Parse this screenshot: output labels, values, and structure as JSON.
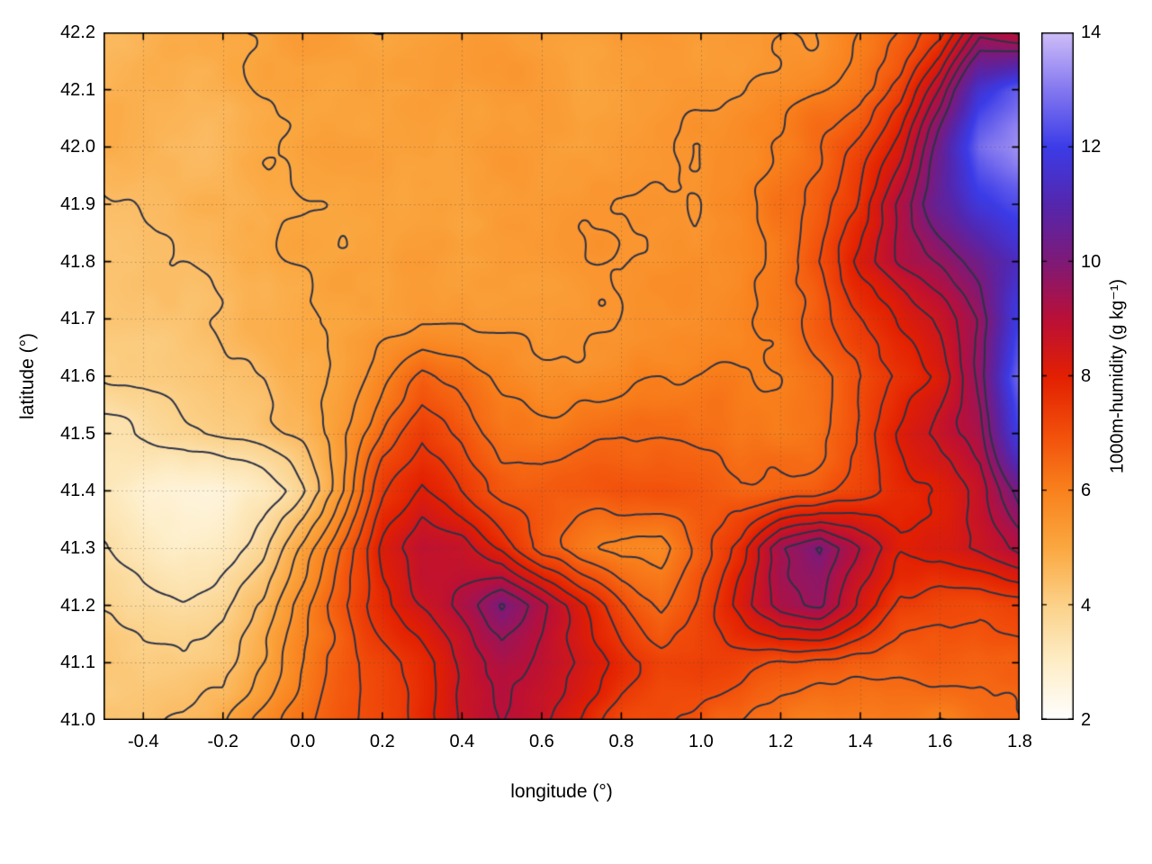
{
  "chart_data": {
    "type": "heatmap",
    "title": "",
    "xlabel": "longitude (°)",
    "ylabel": "latitude (°)",
    "x_range": [
      -0.5,
      1.8
    ],
    "y_range": [
      41.0,
      42.2
    ],
    "x_tick_values": [
      -0.4,
      -0.2,
      0.0,
      0.2,
      0.4,
      0.6,
      0.8,
      1.0,
      1.2,
      1.4,
      1.6,
      1.8
    ],
    "x_tick_labels": [
      "-0.4",
      "-0.2",
      "0.0",
      "0.2",
      "0.4",
      "0.6",
      "0.8",
      "1.0",
      "1.2",
      "1.4",
      "1.6",
      "1.8"
    ],
    "y_tick_values": [
      41.0,
      41.1,
      41.2,
      41.3,
      41.4,
      41.5,
      41.6,
      41.7,
      41.8,
      41.9,
      42.0,
      42.1,
      42.2
    ],
    "y_tick_labels": [
      "41.0",
      "41.1",
      "41.2",
      "41.3",
      "41.4",
      "41.5",
      "41.6",
      "41.7",
      "41.8",
      "41.9",
      "42.0",
      "42.1",
      "42.2"
    ],
    "grid_on": true,
    "colorbar": {
      "label": "1000m-humidity (g kg⁻¹)",
      "range": [
        2,
        14
      ],
      "tick_values": [
        2,
        4,
        6,
        8,
        10,
        12,
        14
      ],
      "tick_labels": [
        "2",
        "4",
        "6",
        "8",
        "10",
        "12",
        "14"
      ],
      "stops": [
        [
          2,
          "#ffffff"
        ],
        [
          3,
          "#feeec8"
        ],
        [
          4,
          "#fbd28a"
        ],
        [
          5,
          "#fba841"
        ],
        [
          6,
          "#f9821d"
        ],
        [
          7,
          "#f24f0b"
        ],
        [
          8,
          "#e32002"
        ],
        [
          9,
          "#bb1038"
        ],
        [
          10,
          "#7f1a78"
        ],
        [
          11,
          "#5527ae"
        ],
        [
          12,
          "#3c3ce8"
        ],
        [
          13,
          "#8478f0"
        ],
        [
          14,
          "#cfbef8"
        ]
      ]
    },
    "contour_levels": [
      3.5,
      4,
      4.5,
      5,
      5.5,
      6,
      6.5,
      7,
      7.5,
      8,
      8.5,
      9,
      9.5,
      10
    ],
    "contour_color": "#2d3245",
    "field": {
      "units": "g kg⁻¹",
      "lon": [
        -0.5,
        -0.4,
        -0.3,
        -0.2,
        -0.1,
        0.0,
        0.1,
        0.2,
        0.3,
        0.4,
        0.5,
        0.6,
        0.7,
        0.8,
        0.9,
        1.0,
        1.1,
        1.2,
        1.3,
        1.4,
        1.5,
        1.6,
        1.7,
        1.8
      ],
      "lat": [
        42.2,
        42.1,
        42.0,
        41.9,
        41.8,
        41.7,
        41.6,
        41.5,
        41.4,
        41.3,
        41.2,
        41.1,
        41.0
      ],
      "values": [
        [
          4.8,
          4.9,
          5.0,
          5.0,
          5.0,
          5.1,
          5.1,
          5.0,
          5.0,
          5.1,
          5.2,
          5.1,
          5.1,
          5.2,
          5.3,
          5.2,
          5.3,
          5.5,
          5.6,
          6.0,
          6.6,
          7.4,
          9.5,
          9.0
        ],
        [
          4.7,
          4.8,
          4.9,
          4.9,
          5.0,
          5.0,
          5.0,
          5.0,
          5.1,
          5.1,
          5.2,
          5.2,
          5.1,
          5.2,
          5.3,
          5.3,
          5.4,
          5.6,
          5.9,
          6.3,
          7.2,
          9.0,
          11.5,
          12.5
        ],
        [
          4.6,
          4.7,
          4.8,
          4.8,
          4.9,
          5.0,
          5.0,
          5.0,
          5.0,
          5.1,
          5.2,
          5.2,
          5.2,
          5.3,
          5.3,
          5.4,
          5.6,
          5.9,
          6.3,
          7.0,
          8.2,
          10.2,
          12.6,
          13.2
        ],
        [
          4.5,
          4.6,
          4.7,
          4.8,
          4.8,
          4.9,
          5.0,
          5.0,
          5.1,
          5.1,
          5.2,
          5.3,
          5.3,
          5.3,
          5.4,
          5.5,
          5.7,
          6.1,
          6.6,
          7.6,
          9.0,
          10.6,
          11.6,
          12.2
        ],
        [
          4.5,
          4.5,
          4.6,
          4.7,
          4.8,
          4.9,
          5.0,
          5.1,
          5.2,
          5.2,
          5.3,
          5.3,
          5.4,
          5.4,
          5.5,
          5.6,
          5.8,
          6.2,
          7.0,
          8.0,
          9.0,
          9.6,
          10.2,
          11.2
        ],
        [
          4.3,
          4.4,
          4.5,
          4.6,
          4.7,
          4.8,
          5.0,
          5.2,
          5.4,
          5.5,
          5.5,
          5.5,
          5.5,
          5.6,
          5.6,
          5.7,
          5.9,
          6.2,
          6.8,
          7.5,
          8.1,
          8.6,
          9.6,
          12.0
        ],
        [
          4.0,
          4.1,
          4.3,
          4.5,
          4.6,
          4.8,
          5.2,
          5.8,
          6.6,
          6.3,
          6.0,
          5.8,
          5.8,
          5.8,
          5.9,
          5.9,
          6.0,
          6.2,
          6.5,
          7.0,
          7.6,
          8.1,
          9.6,
          12.6
        ],
        [
          3.6,
          3.7,
          3.9,
          4.2,
          4.5,
          4.8,
          5.5,
          6.6,
          7.5,
          6.9,
          6.3,
          6.2,
          6.2,
          6.3,
          6.3,
          6.2,
          6.1,
          6.2,
          6.5,
          7.2,
          8.0,
          8.5,
          9.2,
          12.0
        ],
        [
          3.2,
          2.9,
          2.8,
          2.8,
          3.2,
          4.0,
          5.5,
          7.4,
          8.1,
          7.6,
          6.9,
          6.8,
          6.9,
          7.0,
          7.0,
          6.8,
          6.6,
          6.8,
          7.0,
          7.2,
          7.6,
          8.0,
          8.6,
          10.2
        ],
        [
          3.4,
          3.2,
          3.0,
          3.2,
          3.8,
          5.0,
          6.5,
          8.0,
          9.0,
          8.8,
          8.2,
          7.0,
          6.4,
          6.0,
          6.0,
          7.0,
          8.0,
          9.6,
          10.0,
          8.8,
          7.8,
          8.0,
          8.6,
          9.2
        ],
        [
          3.8,
          3.6,
          3.5,
          3.8,
          4.5,
          5.8,
          7.0,
          8.0,
          8.6,
          9.2,
          10.0,
          9.2,
          8.0,
          7.0,
          6.4,
          7.2,
          8.2,
          9.2,
          9.4,
          8.2,
          7.2,
          7.0,
          7.0,
          7.4
        ],
        [
          4.2,
          4.0,
          4.0,
          4.2,
          5.0,
          6.0,
          6.8,
          7.4,
          8.0,
          8.6,
          9.2,
          8.8,
          8.2,
          7.6,
          7.2,
          7.4,
          7.2,
          6.9,
          6.7,
          6.6,
          6.5,
          6.5,
          6.6,
          6.8
        ],
        [
          4.3,
          4.4,
          4.5,
          4.8,
          5.5,
          6.2,
          6.8,
          7.2,
          7.8,
          8.4,
          8.8,
          8.4,
          7.8,
          7.0,
          6.9,
          6.7,
          6.5,
          6.3,
          6.1,
          6.0,
          6.0,
          6.0,
          6.2,
          6.5
        ]
      ]
    }
  }
}
